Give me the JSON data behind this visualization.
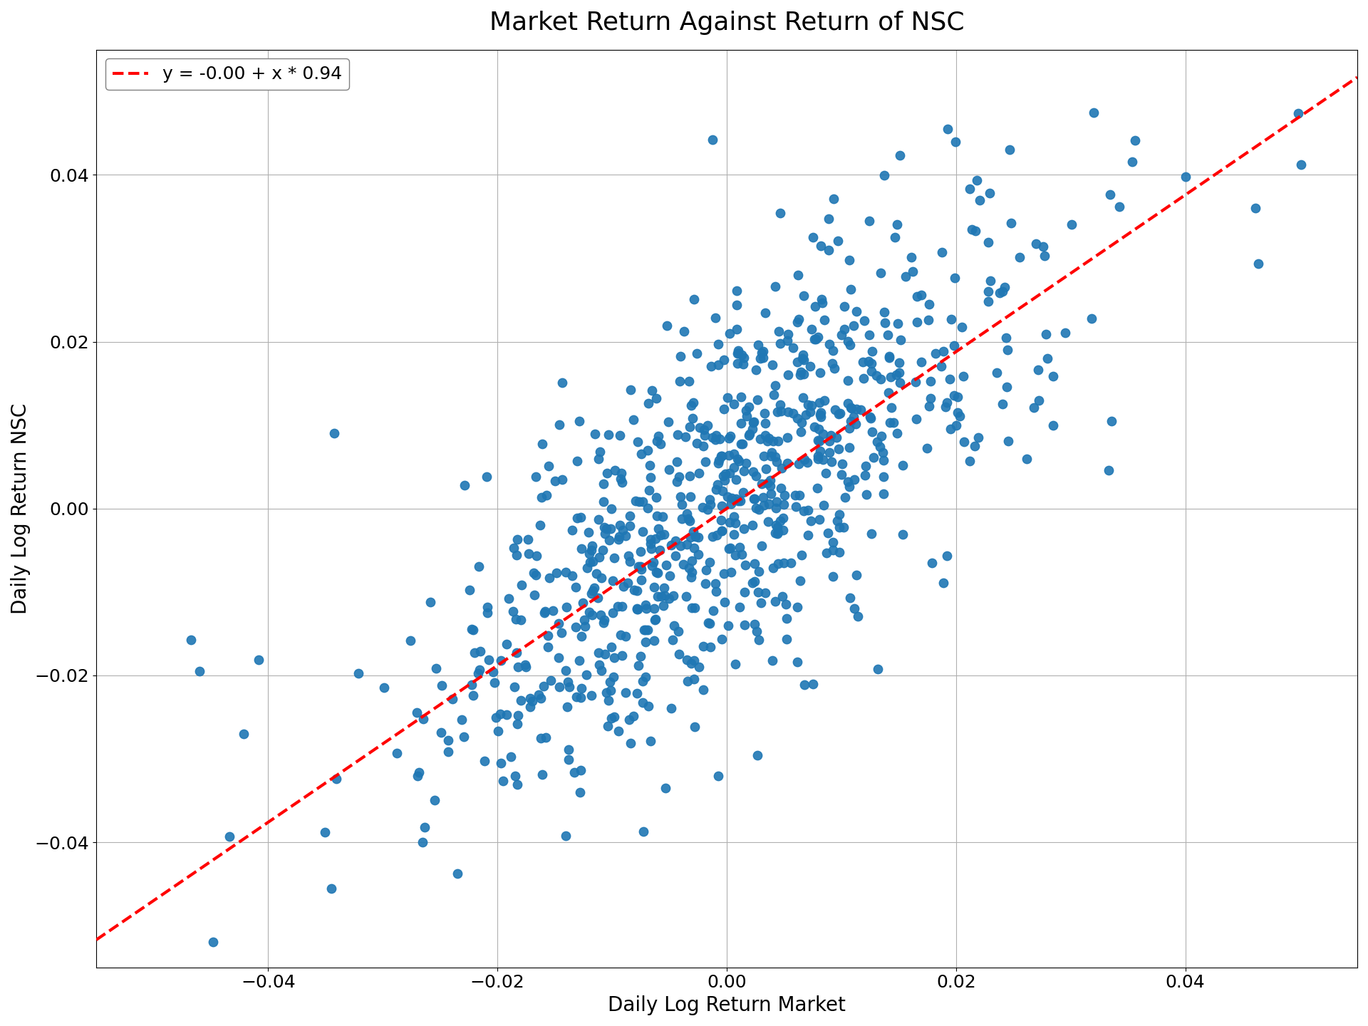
{
  "title": "Market Return Against Return of NSC",
  "xlabel": "Daily Log Return Market",
  "ylabel": "Daily Log Return NSC",
  "legend_label": "y = -0.00 + x * 0.94",
  "slope": 0.94,
  "intercept": -0.0,
  "xlim": [
    -0.055,
    0.055
  ],
  "ylim": [
    -0.055,
    0.055
  ],
  "xticks": [
    -0.04,
    -0.02,
    0.0,
    0.02,
    0.04
  ],
  "yticks": [
    -0.04,
    -0.02,
    0.0,
    0.02,
    0.04
  ],
  "dot_color": "#1f77b4",
  "line_color": "#ff0000",
  "dot_size": 80,
  "dot_alpha": 0.9,
  "background_color": "#ffffff",
  "grid_color": "#b0b0b0",
  "title_fontsize": 26,
  "label_fontsize": 20,
  "tick_fontsize": 18,
  "legend_fontsize": 18,
  "random_seed": 42,
  "n_points": 800,
  "market_std": 0.013,
  "noise_std": 0.011
}
